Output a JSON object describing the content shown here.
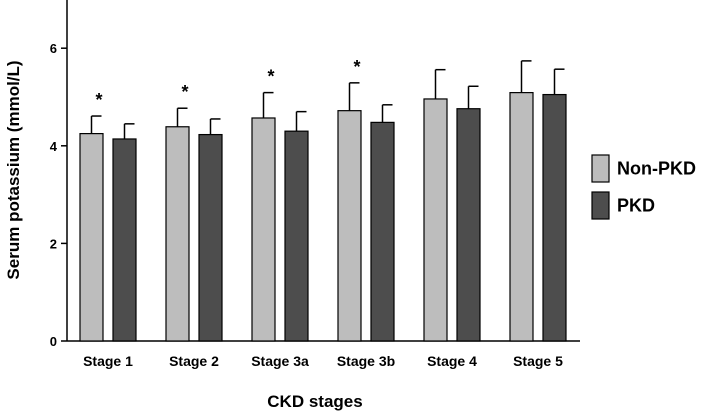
{
  "chart_data": {
    "type": "bar",
    "title": "",
    "xlabel": "CKD stages",
    "ylabel": "Serum potassium (mmol/L)",
    "ylim": [
      0,
      7
    ],
    "yticks": [
      0,
      2,
      4,
      6
    ],
    "grid": false,
    "legend_position": "right",
    "categories": [
      "Stage 1",
      "Stage 2",
      "Stage 3a",
      "Stage 3b",
      "Stage 4",
      "Stage 5"
    ],
    "series": [
      {
        "name": "Non-PKD",
        "color": "#bdbdbd",
        "values": [
          4.25,
          4.39,
          4.57,
          4.72,
          4.96,
          5.09
        ],
        "error": [
          0.36,
          0.38,
          0.52,
          0.57,
          0.6,
          0.65
        ]
      },
      {
        "name": "PKD",
        "color": "#4d4d4d",
        "values": [
          4.14,
          4.23,
          4.3,
          4.48,
          4.76,
          5.05
        ],
        "error": [
          0.31,
          0.32,
          0.4,
          0.36,
          0.46,
          0.52
        ]
      }
    ],
    "annotations": [
      {
        "category": "Stage 1",
        "text": "*"
      },
      {
        "category": "Stage 2",
        "text": "*"
      },
      {
        "category": "Stage 3a",
        "text": "*"
      },
      {
        "category": "Stage 3b",
        "text": "*"
      }
    ]
  }
}
